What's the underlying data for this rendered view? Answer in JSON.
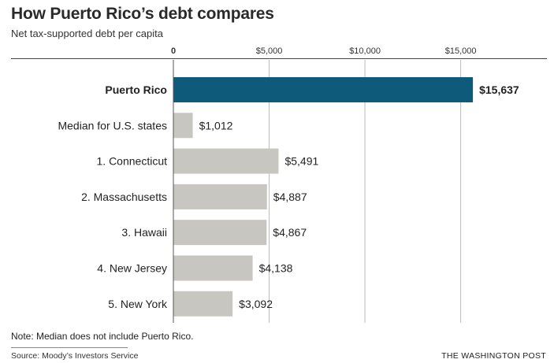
{
  "chart_data": {
    "type": "bar",
    "orientation": "horizontal",
    "title": "How Puerto Rico’s debt compares",
    "subtitle": "Net tax-supported debt per capita",
    "categories": [
      "Puerto Rico",
      "Median for U.S. states",
      "1. Connecticut",
      "2. Massachusetts",
      "3. Hawaii",
      "4. New Jersey",
      "5. New York"
    ],
    "values": [
      15637,
      1012,
      5491,
      4887,
      4867,
      4138,
      3092
    ],
    "value_labels": [
      "$15,637",
      "$1,012",
      "$5,491",
      "$4,887",
      "$4,867",
      "$4,138",
      "$3,092"
    ],
    "highlight_index": 0,
    "xlim": [
      0,
      19500
    ],
    "xticks": [
      0,
      5000,
      10000,
      15000
    ],
    "xtick_labels": [
      "0",
      "$5,000",
      "$10,000",
      "$15,000"
    ],
    "axis_position": "top",
    "grid": true,
    "colors": {
      "highlight": "#0e5a7a",
      "bar": "#c7c6c1",
      "grid": "#bbbbbb"
    }
  },
  "note": "Note: Median does not include Puerto Rico.",
  "source": "Source: Moody’s Investors Service",
  "credit": "THE WASHINGTON POST"
}
